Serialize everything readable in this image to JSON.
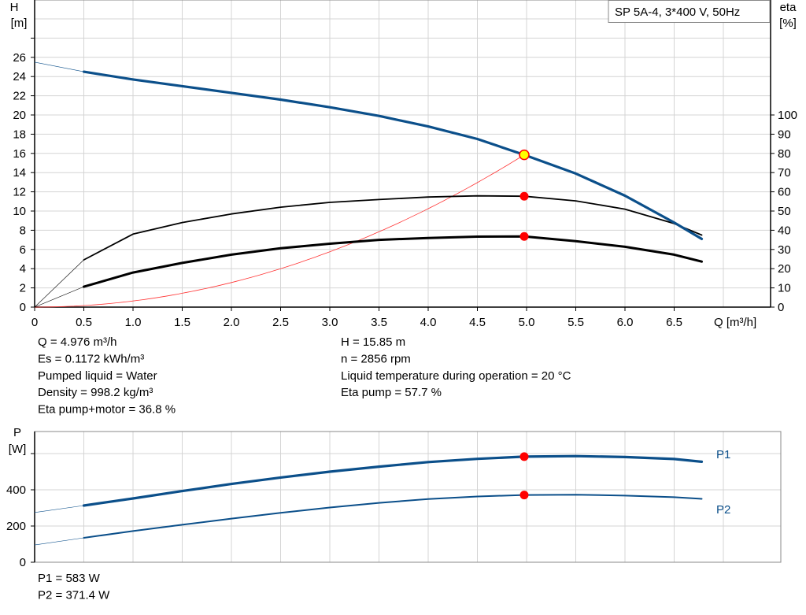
{
  "title_box": "SP 5A-4, 3*400 V, 50Hz",
  "colors": {
    "head": "#0b4f8a",
    "efficiency": "#000000",
    "system": "#ff3333",
    "power": "#0b4f8a",
    "operating_point": "#ff0000",
    "operating_point_fill": "#ffff00"
  },
  "chart_data": [
    {
      "type": "line",
      "xlabel": "Q [m³/h]",
      "ylabel": "H",
      "ylabel_unit": "[m]",
      "y2label": "eta",
      "y2label_unit": "[%]",
      "xlim": [
        0,
        7.48
      ],
      "ylim": [
        0,
        32
      ],
      "y2lim": [
        0,
        160
      ],
      "xticks": [
        "0",
        "0.5",
        "1.0",
        "1.5",
        "2.0",
        "2.5",
        "3.0",
        "3.5",
        "4.0",
        "4.5",
        "5.0",
        "5.5",
        "6.0",
        "6.5"
      ],
      "yticks": [
        "0",
        "2",
        "4",
        "6",
        "8",
        "10",
        "12",
        "14",
        "16",
        "18",
        "20",
        "22",
        "24",
        "26"
      ],
      "y2ticks": [
        "0",
        "10",
        "20",
        "30",
        "40",
        "50",
        "60",
        "70",
        "80",
        "90",
        "100"
      ],
      "grid": true,
      "series": [
        {
          "key": "head",
          "axis": "left",
          "x": [
            0,
            0.5,
            1.0,
            1.5,
            2.0,
            2.5,
            3.0,
            3.5,
            4.0,
            4.5,
            4.976,
            5.5,
            6.0,
            6.5,
            6.78
          ],
          "y": [
            25.5,
            24.5,
            23.7,
            23.0,
            22.3,
            21.6,
            20.8,
            19.9,
            18.8,
            17.5,
            15.85,
            13.9,
            11.6,
            8.8,
            7.1
          ]
        },
        {
          "key": "eta_pump",
          "axis": "right",
          "x": [
            0,
            0.5,
            1.0,
            1.5,
            2.0,
            2.5,
            3.0,
            3.5,
            4.0,
            4.5,
            4.976,
            5.5,
            6.0,
            6.5,
            6.78
          ],
          "y": [
            0,
            24.6,
            38,
            44,
            48.5,
            52,
            54.5,
            56,
            57.3,
            57.9,
            57.7,
            55.3,
            51,
            43.5,
            37.5
          ]
        },
        {
          "key": "eta_pump_motor",
          "axis": "right",
          "x": [
            0,
            0.5,
            1.0,
            1.5,
            2.0,
            2.5,
            3.0,
            3.5,
            4.0,
            4.5,
            4.976,
            5.5,
            6.0,
            6.5,
            6.78
          ],
          "y": [
            0,
            10.6,
            18,
            23,
            27.3,
            30.6,
            33,
            35,
            36,
            36.7,
            36.8,
            34.3,
            31.4,
            27.3,
            23.7
          ]
        },
        {
          "key": "system_curve",
          "axis": "left",
          "x": [
            0,
            0.5,
            1.0,
            1.5,
            2.0,
            2.5,
            3.0,
            3.5,
            4.0,
            4.5,
            4.976
          ],
          "y": [
            0,
            0.16,
            0.64,
            1.44,
            2.56,
            4.0,
            5.76,
            7.84,
            10.24,
            12.96,
            15.85
          ]
        }
      ],
      "operating_point": {
        "q": 4.976,
        "h": 15.85,
        "eta_pump": 57.7,
        "eta_pump_motor": 36.8
      }
    },
    {
      "type": "line",
      "ylabel": "P",
      "ylabel_unit": "[W]",
      "xlim": [
        0,
        7.48
      ],
      "ylim": [
        0,
        720
      ],
      "yticks": [
        "0",
        "200",
        "400"
      ],
      "grid": true,
      "series": [
        {
          "name": "P1",
          "x": [
            0,
            0.5,
            1.0,
            1.5,
            2.0,
            2.5,
            3.0,
            3.5,
            4.0,
            4.5,
            4.976,
            5.5,
            6.0,
            6.5,
            6.78
          ],
          "y": [
            275,
            313,
            352,
            393,
            432,
            468,
            500,
            528,
            553,
            571,
            583,
            586,
            581,
            570,
            555
          ]
        },
        {
          "name": "P2",
          "x": [
            0,
            0.5,
            1.0,
            1.5,
            2.0,
            2.5,
            3.0,
            3.5,
            4.0,
            4.5,
            4.976,
            5.5,
            6.0,
            6.5,
            6.78
          ],
          "y": [
            95,
            135,
            172,
            207,
            241,
            273,
            302,
            328,
            349,
            363,
            371.4,
            373,
            368,
            359,
            350
          ]
        }
      ],
      "operating_point": {
        "q": 4.976,
        "p1": 583,
        "p2": 371.4
      }
    }
  ],
  "results": {
    "left": [
      "Q = 4.976 m³/h",
      "Es = 0.1172 kWh/m³",
      "Pumped liquid = Water",
      "Density = 998.2 kg/m³",
      "Eta pump+motor = 36.8 %"
    ],
    "right": [
      "H = 15.85 m",
      "n = 2856 rpm",
      "Liquid temperature during operation = 20 °C",
      "Eta pump = 57.7 %"
    ],
    "power": [
      "P1 = 583 W",
      "P2 = 371.4 W"
    ]
  }
}
